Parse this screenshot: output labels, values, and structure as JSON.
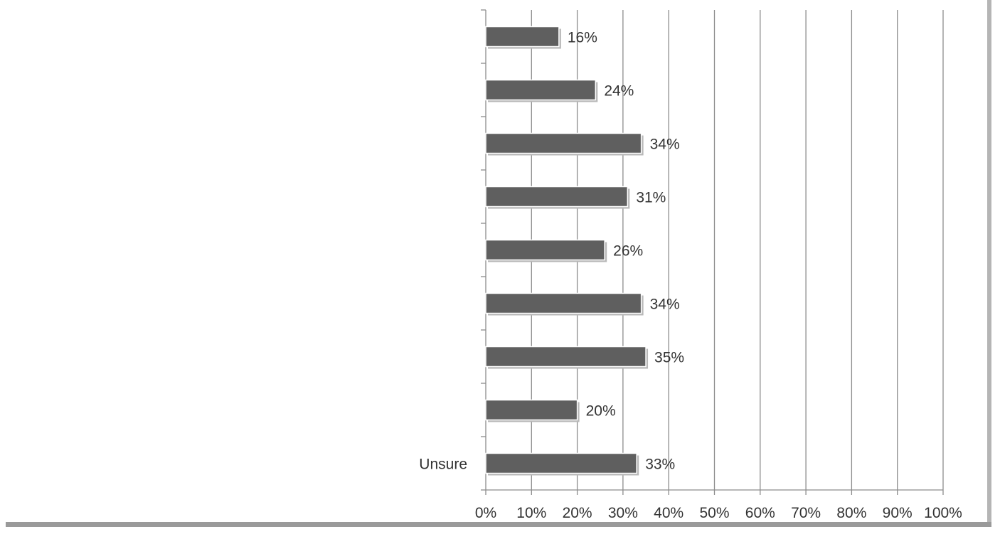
{
  "chart_data": {
    "type": "bar",
    "orientation": "horizontal",
    "categories": [
      "",
      "",
      "",
      "",
      "",
      "",
      "",
      "",
      "Unsure"
    ],
    "values": [
      16,
      24,
      34,
      31,
      26,
      34,
      35,
      20,
      33
    ],
    "data_labels": [
      "16%",
      "24%",
      "34%",
      "31%",
      "26%",
      "34%",
      "35%",
      "20%",
      "33%"
    ],
    "x_ticks": [
      "0%",
      "10%",
      "20%",
      "30%",
      "40%",
      "50%",
      "60%",
      "70%",
      "80%",
      "90%",
      "100%"
    ],
    "xlim": [
      0,
      100
    ],
    "grid": "vertical",
    "legend": "none",
    "title": "",
    "xlabel": "",
    "ylabel": ""
  },
  "colors": {
    "bar": "#5f5f5f",
    "bar_outline": "#ffffff",
    "grid": "#8c8c8c",
    "axis": "#8c8c8c",
    "text": "#333333",
    "frame_shadow": "#9a9a9a"
  }
}
